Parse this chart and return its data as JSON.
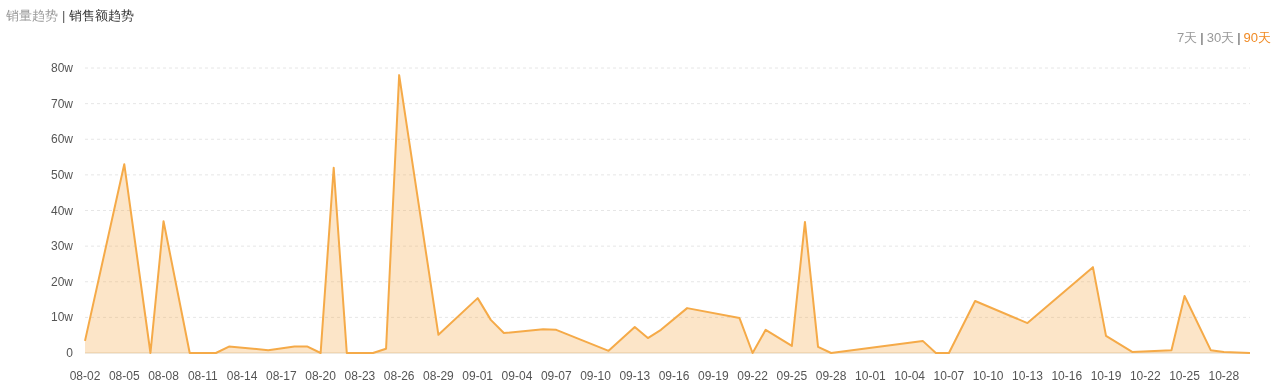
{
  "chart_data": {
    "type": "area",
    "title": "销售额趋势",
    "annotations": [
      "销量趋势",
      "|",
      "7天",
      "|",
      "30天",
      "|",
      "90天"
    ],
    "x": [
      "--08-02",
      "--08-05",
      "--08-07",
      "--08-08",
      "--08-10",
      "--08-12",
      "--08-13",
      "--08-16",
      "--08-18",
      "--08-19",
      "--08-20",
      "--08-21",
      "--08-22",
      "--08-24",
      "--08-25",
      "--08-26",
      "--08-29",
      "--09-01",
      "--09-02",
      "--09-03",
      "--09-06",
      "--09-07",
      "--09-11",
      "--09-13",
      "--09-14",
      "--09-15",
      "--09-17",
      "--09-21",
      "--09-22",
      "--09-23",
      "--09-25",
      "--09-26",
      "--09-27",
      "--09-28",
      "--10-05",
      "--10-06",
      "--10-07",
      "--10-09",
      "--10-13",
      "--10-18",
      "--10-19",
      "--10-21",
      "--10-24",
      "--10-25",
      "--10-27",
      "--10-28",
      "--10-30"
    ],
    "series": [
      {
        "color": "#f5aa48",
        "values": [
          3.4,
          53,
          0,
          37,
          0,
          0,
          1.8,
          0.8,
          1.8,
          1.8,
          0,
          52,
          0,
          0,
          1.2,
          78,
          5.1,
          15.4,
          9.3,
          5.6,
          6.7,
          6.5,
          0.6,
          7.3,
          4.2,
          6.5,
          12.6,
          9.8,
          0,
          6.5,
          2,
          36.8,
          1.7,
          0,
          3.4,
          0,
          0,
          14.6,
          8.4,
          24.1,
          4.8,
          0.3,
          0.8,
          16,
          0.8,
          0.3,
          0
        ]
      }
    ],
    "xlim": [
      "--08-02",
      "--10-30"
    ],
    "xticks": [
      {
        "value": "--08-02",
        "label": "08-02"
      },
      {
        "value": "--08-05",
        "label": "08-05"
      },
      {
        "value": "--08-08",
        "label": "08-08"
      },
      {
        "value": "--08-11",
        "label": "08-11"
      },
      {
        "value": "--08-14",
        "label": "08-14"
      },
      {
        "value": "--08-17",
        "label": "08-17"
      },
      {
        "value": "--08-20",
        "label": "08-20"
      },
      {
        "value": "--08-23",
        "label": "08-23"
      },
      {
        "value": "--08-26",
        "label": "08-26"
      },
      {
        "value": "--08-29",
        "label": "08-29"
      },
      {
        "value": "--09-01",
        "label": "09-01"
      },
      {
        "value": "--09-04",
        "label": "09-04"
      },
      {
        "value": "--09-07",
        "label": "09-07"
      },
      {
        "value": "--09-10",
        "label": "09-10"
      },
      {
        "value": "--09-13",
        "label": "09-13"
      },
      {
        "value": "--09-16",
        "label": "09-16"
      },
      {
        "value": "--09-19",
        "label": "09-19"
      },
      {
        "value": "--09-22",
        "label": "09-22"
      },
      {
        "value": "--09-25",
        "label": "09-25"
      },
      {
        "value": "--09-28",
        "label": "09-28"
      },
      {
        "value": "--10-01",
        "label": "10-01"
      },
      {
        "value": "--10-04",
        "label": "10-04"
      },
      {
        "value": "--10-07",
        "label": "10-07"
      },
      {
        "value": "--10-10",
        "label": "10-10"
      },
      {
        "value": "--10-13",
        "label": "10-13"
      },
      {
        "value": "--10-16",
        "label": "10-16"
      },
      {
        "value": "--10-19",
        "label": "10-19"
      },
      {
        "value": "--10-22",
        "label": "10-22"
      },
      {
        "value": "--10-25",
        "label": "10-25"
      },
      {
        "value": "--10-28",
        "label": "10-28"
      }
    ],
    "ylim": [
      0,
      80
    ],
    "yticks": [
      0,
      {
        "value": 10,
        "label": "10w"
      },
      {
        "value": 20,
        "label": "20w"
      },
      {
        "value": 30,
        "label": "30w"
      },
      {
        "value": 40,
        "label": "40w"
      },
      {
        "value": 50,
        "label": "50w"
      },
      {
        "value": 60,
        "label": "60w"
      },
      {
        "value": 70,
        "label": "70w"
      },
      {
        "value": 80,
        "label": "80w"
      }
    ],
    "grid": "y"
  }
}
